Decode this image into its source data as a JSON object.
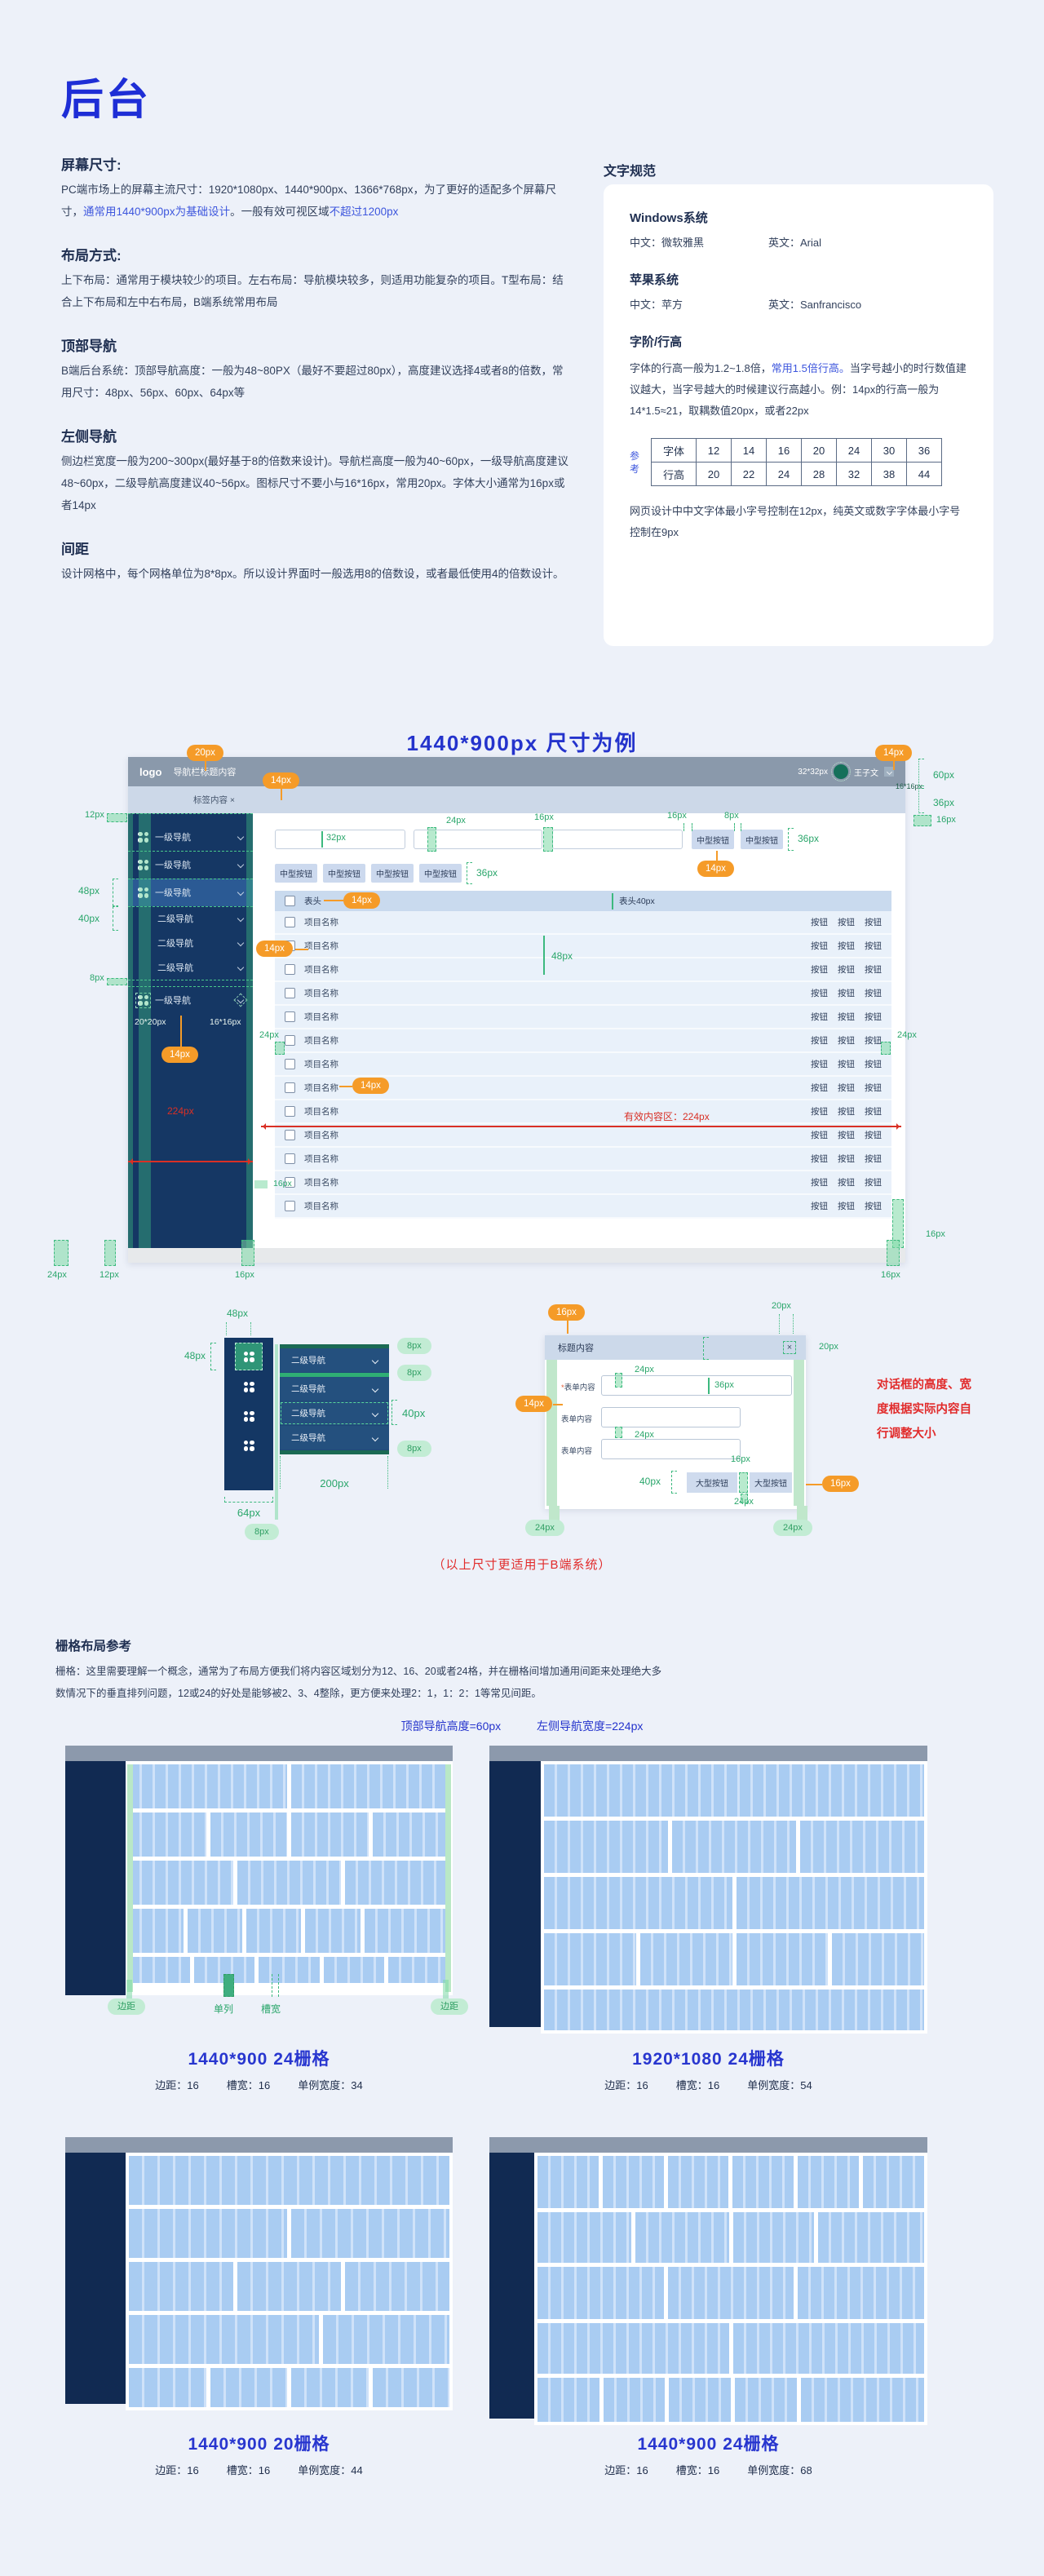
{
  "page_title": "后台",
  "colors": {
    "accent_blue": "#1e2ed6",
    "title_blue": "#2433cc",
    "annotation_green": "#2aa66b",
    "badge_orange": "#f59b28",
    "alert_red": "#e12b2b",
    "sidebar_navy": "#153764",
    "navbar_gray": "#8a99ab"
  },
  "specs": {
    "screen": {
      "heading": "屏幕尺寸:",
      "t1": "PC端市场上的屏幕主流尺寸：1920*1080px、1440*900px、1366*768px，为了更好的适配多个屏幕尺寸，",
      "blue1": "通常用1440*900px为基础设计",
      "t2": "。一般有效可视区域",
      "blue2": "不超过1200px"
    },
    "layout": {
      "heading": "布局方式:",
      "t1": "上下布局：通常用于模块较少的项目。左右布局：导航模块较多，则适用功能复杂的项目。T型布局：结合上下布局和左中右布局，B端系统常用布局"
    },
    "topnav": {
      "heading": "顶部导航",
      "t1": "B端后台系统：顶部导航高度：一般为48~80PX（最好不要超过80px），高度建议选择4或者8的倍数，常用尺寸：48px、56px、60px、64px等"
    },
    "leftnav": {
      "heading": "左侧导航",
      "t1": "侧边栏宽度一般为200~300px(最好基于8的倍数来设计)。导航栏高度一般为40~60px，一级导航高度建议48~60px，二级导航高度建议40~56px。图标尺寸不要小与16*16px，常用20px。字体大小通常为16px或者14px"
    },
    "spacing": {
      "heading": "间距",
      "t1": "设计网格中，每个网格单位为8*8px。所以设计界面时一般选用8的倍数设，或者最低使用4的倍数设计。"
    }
  },
  "typography": {
    "heading": "文字规范",
    "windows": {
      "heading": "Windows系统",
      "zh": "中文：微软雅黑",
      "en": "英文：Arial"
    },
    "apple": {
      "heading": "苹果系统",
      "zh": "中文：苹方",
      "en": "英文：Sanfrancisco"
    },
    "lineheight": {
      "heading": "字阶/行高",
      "t1": "字体的行高一般为1.2~1.8倍，",
      "blue": "常用1.5倍行高。",
      "t2": "当字号越小的时行数值建议越大，当字号越大的时候建议行高越小。例：14px的行高一般为14*1.5≈21，取耦数值20px，或者22px"
    },
    "ref_label": "参考",
    "table": {
      "rows": [
        [
          "字体",
          "12",
          "14",
          "16",
          "20",
          "24",
          "30",
          "36"
        ],
        [
          "行高",
          "20",
          "22",
          "24",
          "28",
          "32",
          "38",
          "44"
        ]
      ]
    },
    "note": "网页设计中中文字体最小字号控制在12px，纯英文或数字字体最小字号控制在9px"
  },
  "ann": {
    "px8": "8px",
    "px12": "12px",
    "px14": "14px",
    "px16": "16px",
    "px20": "20px",
    "px24": "24px",
    "px32": "32px",
    "px36": "36px",
    "px40": "40px",
    "px48": "48px",
    "px60": "60px",
    "px64": "64px",
    "px200": "200px",
    "px224": "224px",
    "icon_size": "20*20px",
    "chevron_size": "16*16px"
  },
  "mockup": {
    "figure_title": "1440*900px  尺寸为例",
    "navbar": {
      "logo": "logo",
      "title": "导航栏标题内容",
      "avatar_size": "32*32px",
      "user": "王子文",
      "chevron_size": "16*16px"
    },
    "tabbar": {
      "tab": "标签内容",
      "close": "×"
    },
    "sidebar": {
      "items": [
        "一级导航",
        "一级导航",
        "一级导航",
        "二级导航",
        "二级导航",
        "二级导航",
        "一级导航"
      ],
      "width_red": "224px"
    },
    "toolbar": {
      "medium_button": "中型按钮"
    },
    "table": {
      "header": "表头",
      "header_note": "表头40px",
      "action": "按钮",
      "effective": "有效内容区：224px",
      "rows": [
        "项目名称",
        "项目名称",
        "项目名称",
        "项目名称",
        "项目名称",
        "项目名称",
        "项目名称",
        "项目名称",
        "项目名称",
        "项目名称",
        "项目名称",
        "项目名称",
        "项目名称"
      ]
    }
  },
  "detail": {
    "rail": {
      "item": "二级导航"
    },
    "dialog": {
      "title": "标题内容",
      "close": "×",
      "required": "*",
      "label": "表单内容",
      "button": "大型按钮",
      "note": [
        "对话框的高度、宽",
        "度根据实际内容自",
        "行调整大小"
      ]
    },
    "caption": "（以上尺寸更适用于B端系统）"
  },
  "grid_section": {
    "heading": "栅格布局参考",
    "body1": "栅格：这里需要理解一个概念，通常为了布局方便我们将内容区域划分为12、16、20或者24格，并在栅格间增加通用间距来处理绝大多",
    "body2": "数情况下的垂直排列问题，12或24的好处是能够被2、3、4整除，更方便来处理2：1，1：2：1等常见间距。",
    "note1": "顶部导航高度=60px",
    "note2": "左侧导航宽度=224px",
    "col_labels": [
      "边距",
      "单列",
      "槽宽",
      "边距"
    ],
    "grids": [
      {
        "title": "1440*900  24栅格",
        "stats": [
          "边距：16",
          "槽宽：16",
          "单例宽度：34"
        ],
        "rows": [
          {
            "h": 54,
            "b": [
              1,
              1
            ]
          },
          {
            "h": 54,
            "b": [
              1,
              1,
              1,
              1
            ]
          },
          {
            "h": 54,
            "b": [
              1,
              1,
              1
            ]
          },
          {
            "h": 54,
            "b": [
              0.9,
              0.9,
              0.9,
              0.9,
              1.4
            ]
          },
          {
            "h": 32,
            "b": [
              1,
              1,
              1,
              1,
              1
            ]
          }
        ]
      },
      {
        "title": "1920*1080  24栅格",
        "stats": [
          "边距：16",
          "槽宽：16",
          "单例宽度：54"
        ],
        "rows": [
          {
            "h": 64,
            "b": [
              1
            ]
          },
          {
            "h": 64,
            "b": [
              1,
              1,
              1
            ]
          },
          {
            "h": 64,
            "b": [
              1,
              1
            ]
          },
          {
            "h": 64,
            "b": [
              1,
              1,
              1,
              1
            ]
          },
          {
            "h": 50,
            "b": [
              1
            ]
          }
        ]
      },
      {
        "title": "1440*900  20栅格",
        "stats": [
          "边距：16",
          "槽宽：16",
          "单例宽度：44"
        ],
        "rows": [
          {
            "h": 60,
            "b": [
              1
            ]
          },
          {
            "h": 60,
            "b": [
              1,
              1
            ]
          },
          {
            "h": 60,
            "b": [
              1,
              1,
              1
            ]
          },
          {
            "h": 60,
            "b": [
              1.5,
              1
            ]
          },
          {
            "h": 48,
            "b": [
              1,
              1,
              1,
              1
            ]
          }
        ]
      },
      {
        "title": "1440*900  24栅格",
        "stats": [
          "边距：16",
          "槽宽：16",
          "单例宽度：68"
        ],
        "rows": [
          {
            "h": 64,
            "b": [
              1,
              1,
              1,
              1,
              1,
              1
            ]
          },
          {
            "h": 62,
            "b": [
              1.1,
              1.1,
              0.95,
              1.25
            ]
          },
          {
            "h": 64,
            "b": [
              1.4,
              1.4,
              1.4
            ]
          },
          {
            "h": 62,
            "b": [
              1,
              1
            ]
          },
          {
            "h": 54,
            "b": [
              0.75,
              0.75,
              0.75,
              0.75,
              1.5
            ]
          }
        ]
      }
    ]
  }
}
